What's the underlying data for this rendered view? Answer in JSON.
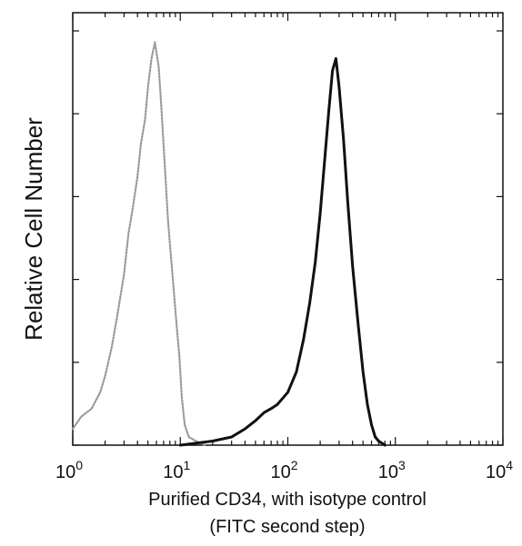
{
  "chart_data": {
    "type": "line",
    "title": "",
    "xlabel": "Purified CD34, with isotype control",
    "xlabel_line2": "(FITC second step)",
    "ylabel": "Relative Cell Number",
    "x_scale": "log",
    "xlim": [
      1,
      10000
    ],
    "ylim": [
      0,
      100
    ],
    "x_ticks": [
      {
        "base": "10",
        "exp": "0",
        "value": 1
      },
      {
        "base": "10",
        "exp": "1",
        "value": 10
      },
      {
        "base": "10",
        "exp": "2",
        "value": 100
      },
      {
        "base": "10",
        "exp": "3",
        "value": 1000
      },
      {
        "base": "10",
        "exp": "4",
        "value": 10000
      }
    ],
    "y_ticks_labeled": false,
    "grid": false,
    "legend": "none",
    "series": [
      {
        "style": "dotted-gray",
        "color": "#9a9a9a",
        "x": [
          1.0,
          1.2,
          1.5,
          1.8,
          2.0,
          2.3,
          2.6,
          3.0,
          3.3,
          3.6,
          4.0,
          4.3,
          4.7,
          5.0,
          5.4,
          5.8,
          6.3,
          6.7,
          7.2,
          7.7,
          8.2,
          8.7,
          9.2,
          9.8,
          10.3,
          11.0,
          12.0,
          14.0,
          17.0
        ],
        "y": [
          4,
          7,
          9,
          13,
          17,
          24,
          32,
          42,
          52,
          58,
          66,
          74,
          80,
          88,
          95,
          99,
          93,
          82,
          68,
          55,
          46,
          38,
          30,
          22,
          12,
          5,
          2,
          1,
          0
        ]
      },
      {
        "style": "solid-black",
        "color": "#111111",
        "x": [
          10,
          20,
          30,
          40,
          50,
          60,
          70,
          80,
          100,
          120,
          140,
          160,
          180,
          200,
          220,
          240,
          260,
          280,
          300,
          330,
          360,
          400,
          450,
          500,
          550,
          600,
          650,
          700,
          800
        ],
        "y": [
          0,
          1,
          2,
          4,
          6,
          8,
          9,
          10,
          13,
          18,
          26,
          35,
          45,
          57,
          70,
          82,
          92,
          95,
          88,
          75,
          60,
          44,
          30,
          18,
          10,
          5,
          2,
          1,
          0
        ]
      }
    ]
  }
}
